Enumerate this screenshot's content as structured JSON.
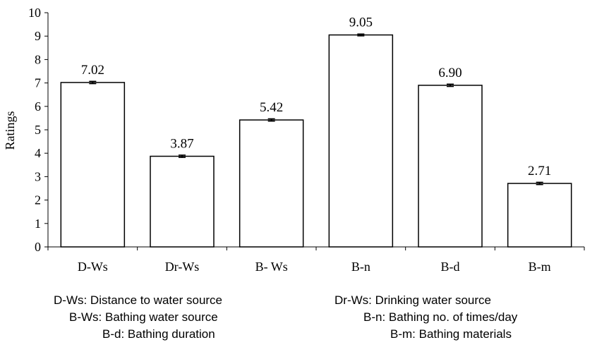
{
  "chart_data": {
    "type": "bar",
    "title": "",
    "xlabel": "",
    "ylabel": "Ratings",
    "ylim": [
      0,
      10
    ],
    "yticks": [
      "0",
      "1",
      "2",
      "3",
      "4",
      "5",
      "6",
      "7",
      "8",
      "9",
      "10"
    ],
    "categories": [
      "D-Ws",
      "Dr-Ws",
      "B- Ws",
      "B-n",
      "B-d",
      "B-m"
    ],
    "values": [
      7.02,
      3.87,
      5.42,
      9.05,
      6.9,
      2.71
    ],
    "value_labels": [
      "7.02",
      "3.87",
      "5.42",
      "9.05",
      "6.90",
      "2.71"
    ],
    "error": [
      0.05,
      0.05,
      0.05,
      0.04,
      0.05,
      0.05
    ],
    "bar_color": "#ffffff",
    "edge_color": "#000000",
    "grid": false,
    "legend": "none"
  },
  "notes": [
    "D-Ws: Distance to water source",
    "Dr-Ws: Drinking water source",
    "B-Ws: Bathing water source",
    "B-n: Bathing no. of times/day",
    "B-d: Bathing duration",
    "B-m: Bathing materials"
  ]
}
